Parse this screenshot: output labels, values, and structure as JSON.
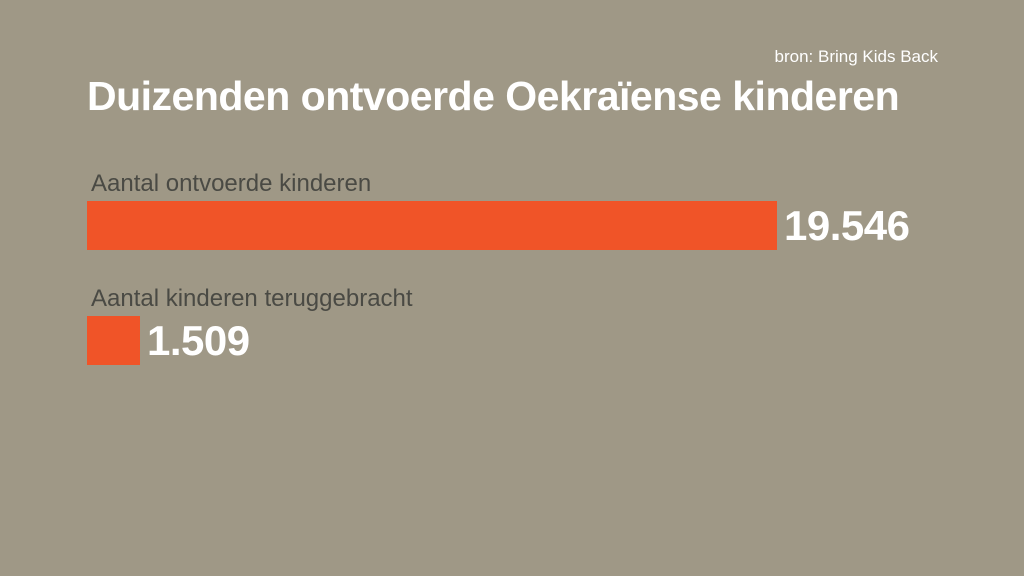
{
  "source": "bron: Bring Kids Back",
  "colors": {
    "background": "#9f9886",
    "bar": "#f05428",
    "title": "#ffffff",
    "label": "#4a4a44"
  },
  "chart_data": {
    "type": "bar",
    "orientation": "horizontal",
    "title": "Duizenden ontvoerde Oekraïense kinderen",
    "categories": [
      "Aantal ontvoerde kinderen",
      "Aantal kinderen teruggebracht"
    ],
    "values": [
      19546,
      1509
    ],
    "value_labels": [
      "19.546",
      "1.509"
    ],
    "xlim": [
      0,
      19546
    ],
    "grid": false,
    "legend": "none"
  }
}
